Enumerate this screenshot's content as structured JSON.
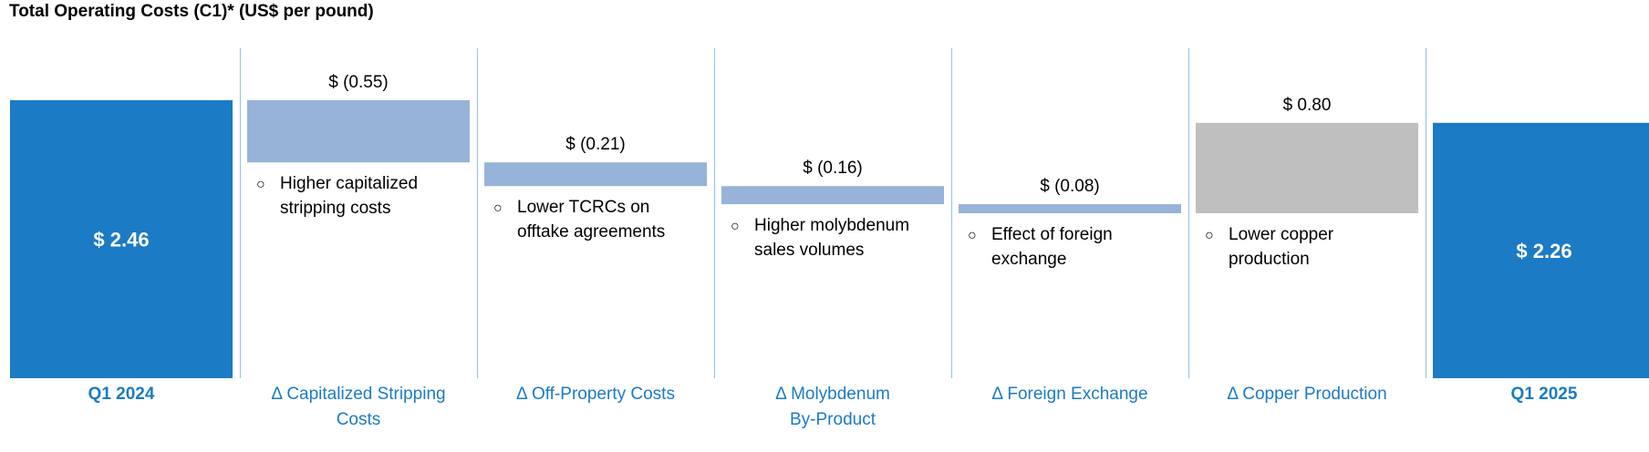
{
  "chart_data": {
    "type": "bar",
    "subtype": "waterfall",
    "title": "Total Operating Costs (C1)* (US$ per pound)",
    "categories": [
      "Q1 2024",
      "Δ Capitalized Stripping Costs",
      "Δ Off-Property Costs",
      "Δ Molybdenum By-Product",
      "Δ Foreign Exchange",
      "Δ Copper Production",
      "Q1 2025"
    ],
    "category_label_lines": [
      [
        "Q1 2024"
      ],
      [
        "Δ Capitalized Stripping",
        "Costs"
      ],
      [
        "Δ Off-Property Costs"
      ],
      [
        "Δ Molybdenum",
        "By-Product"
      ],
      [
        "Δ Foreign Exchange"
      ],
      [
        "Δ Copper Production"
      ],
      [
        "Q1 2025"
      ]
    ],
    "values": [
      2.46,
      -0.55,
      -0.21,
      -0.16,
      -0.08,
      0.8,
      2.26
    ],
    "kinds": [
      "total",
      "delta",
      "delta",
      "delta",
      "delta",
      "delta",
      "total"
    ],
    "data_labels": [
      "$ 2.46",
      "$ (0.55)",
      "$ (0.21)",
      "$ (0.16)",
      "$ (0.08)",
      "$ 0.80",
      "$ 2.26"
    ],
    "annotations": [
      [],
      [
        "Higher capitalized",
        "stripping costs"
      ],
      [
        "Lower TCRCs on",
        "offtake agreements"
      ],
      [
        "Higher molybdenum",
        "sales volumes"
      ],
      [
        "Effect of foreign",
        "exchange"
      ],
      [
        "Lower copper",
        "production"
      ],
      []
    ],
    "annotation_bullet": "○",
    "ylim": [
      0,
      2.46
    ],
    "grid": false,
    "legend": "none",
    "colors": {
      "total": "#1B7BC4",
      "decrease": "#97B3D7",
      "increase": "#BFBFBF",
      "category_text": "#1B7BC4",
      "divider": "#9DC3E6",
      "label_text": "#000000",
      "total_label_text": "#FFFFFF"
    }
  }
}
